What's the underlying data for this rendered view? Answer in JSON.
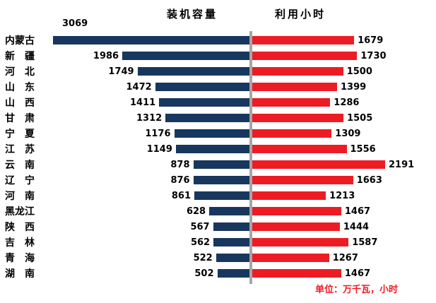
{
  "chart_data": {
    "type": "bar",
    "layout": "bidirectional-horizontal",
    "title_left": "装机容量",
    "title_right": "利用小时",
    "unit_note": "单位：万千瓦，小时",
    "divider_color": "#A6A6A6",
    "categories": [
      "内蒙古",
      "新　疆",
      "河　北",
      "山　东",
      "山　西",
      "甘　肃",
      "宁　夏",
      "江　苏",
      "云　南",
      "辽　宁",
      "河　南",
      "黑龙江",
      "陕　西",
      "吉　林",
      "青　海",
      "湖　南"
    ],
    "series": [
      {
        "name": "装机容量",
        "direction": "left",
        "color": "#17375E",
        "values": [
          3069,
          1986,
          1749,
          1472,
          1411,
          1312,
          1176,
          1149,
          878,
          876,
          861,
          628,
          567,
          562,
          522,
          502
        ]
      },
      {
        "name": "利用小时",
        "direction": "right",
        "color": "#ED1C24",
        "values": [
          1679,
          1730,
          1500,
          1399,
          1286,
          1505,
          1309,
          1556,
          2191,
          1663,
          1213,
          1467,
          1444,
          1587,
          1267,
          1467
        ]
      }
    ],
    "value_labels": true,
    "grid": false,
    "legend_position": "top-as-titles"
  }
}
